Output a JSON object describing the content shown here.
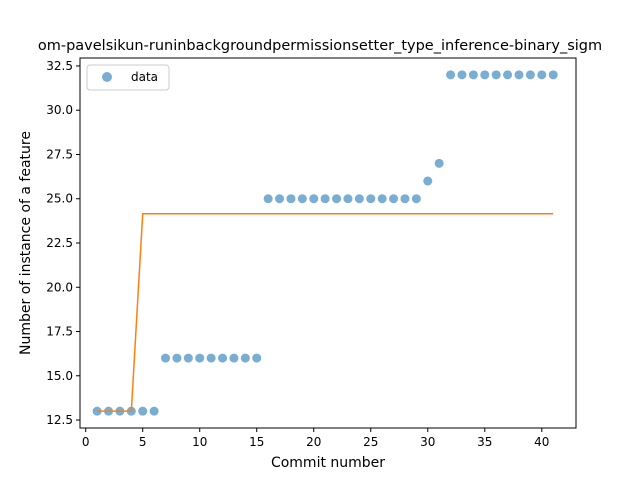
{
  "chart_data": {
    "type": "scatter",
    "title": "om-pavelsikun-runinbackgroundpermissionsetter_type_inference-binary_sigm",
    "xlabel": "Commit number",
    "ylabel": "Number of instance of a feature",
    "xlim": [
      -0.5,
      43.0
    ],
    "ylim": [
      12.05,
      32.95
    ],
    "xticks": [
      0,
      5,
      10,
      15,
      20,
      25,
      30,
      35,
      40
    ],
    "yticks": [
      12.5,
      15.0,
      17.5,
      20.0,
      22.5,
      25.0,
      27.5,
      30.0,
      32.5
    ],
    "ytick_labels": [
      "12.5",
      "15.0",
      "17.5",
      "20.0",
      "22.5",
      "25.0",
      "27.5",
      "30.0",
      "32.5"
    ],
    "grid": false,
    "legend": {
      "position": "top-left",
      "entries": [
        "data"
      ]
    },
    "series": [
      {
        "name": "data",
        "kind": "scatter",
        "color": "#1f77b4",
        "x": [
          1,
          2,
          3,
          4,
          5,
          6,
          7,
          8,
          9,
          10,
          11,
          12,
          13,
          14,
          15,
          16,
          17,
          18,
          19,
          20,
          21,
          22,
          23,
          24,
          25,
          26,
          27,
          28,
          29,
          30,
          31,
          32,
          33,
          34,
          35,
          36,
          37,
          38,
          39,
          40,
          41
        ],
        "y": [
          13,
          13,
          13,
          13,
          13,
          13,
          16,
          16,
          16,
          16,
          16,
          16,
          16,
          16,
          16,
          25,
          25,
          25,
          25,
          25,
          25,
          25,
          25,
          25,
          25,
          25,
          25,
          25,
          25,
          26,
          27,
          32,
          32,
          32,
          32,
          32,
          32,
          32,
          32,
          32,
          32
        ]
      },
      {
        "kind": "line",
        "color": "#ff7f0e",
        "x": [
          1,
          4,
          5,
          41
        ],
        "y": [
          13.0,
          13.0,
          24.15,
          24.15
        ]
      }
    ]
  }
}
